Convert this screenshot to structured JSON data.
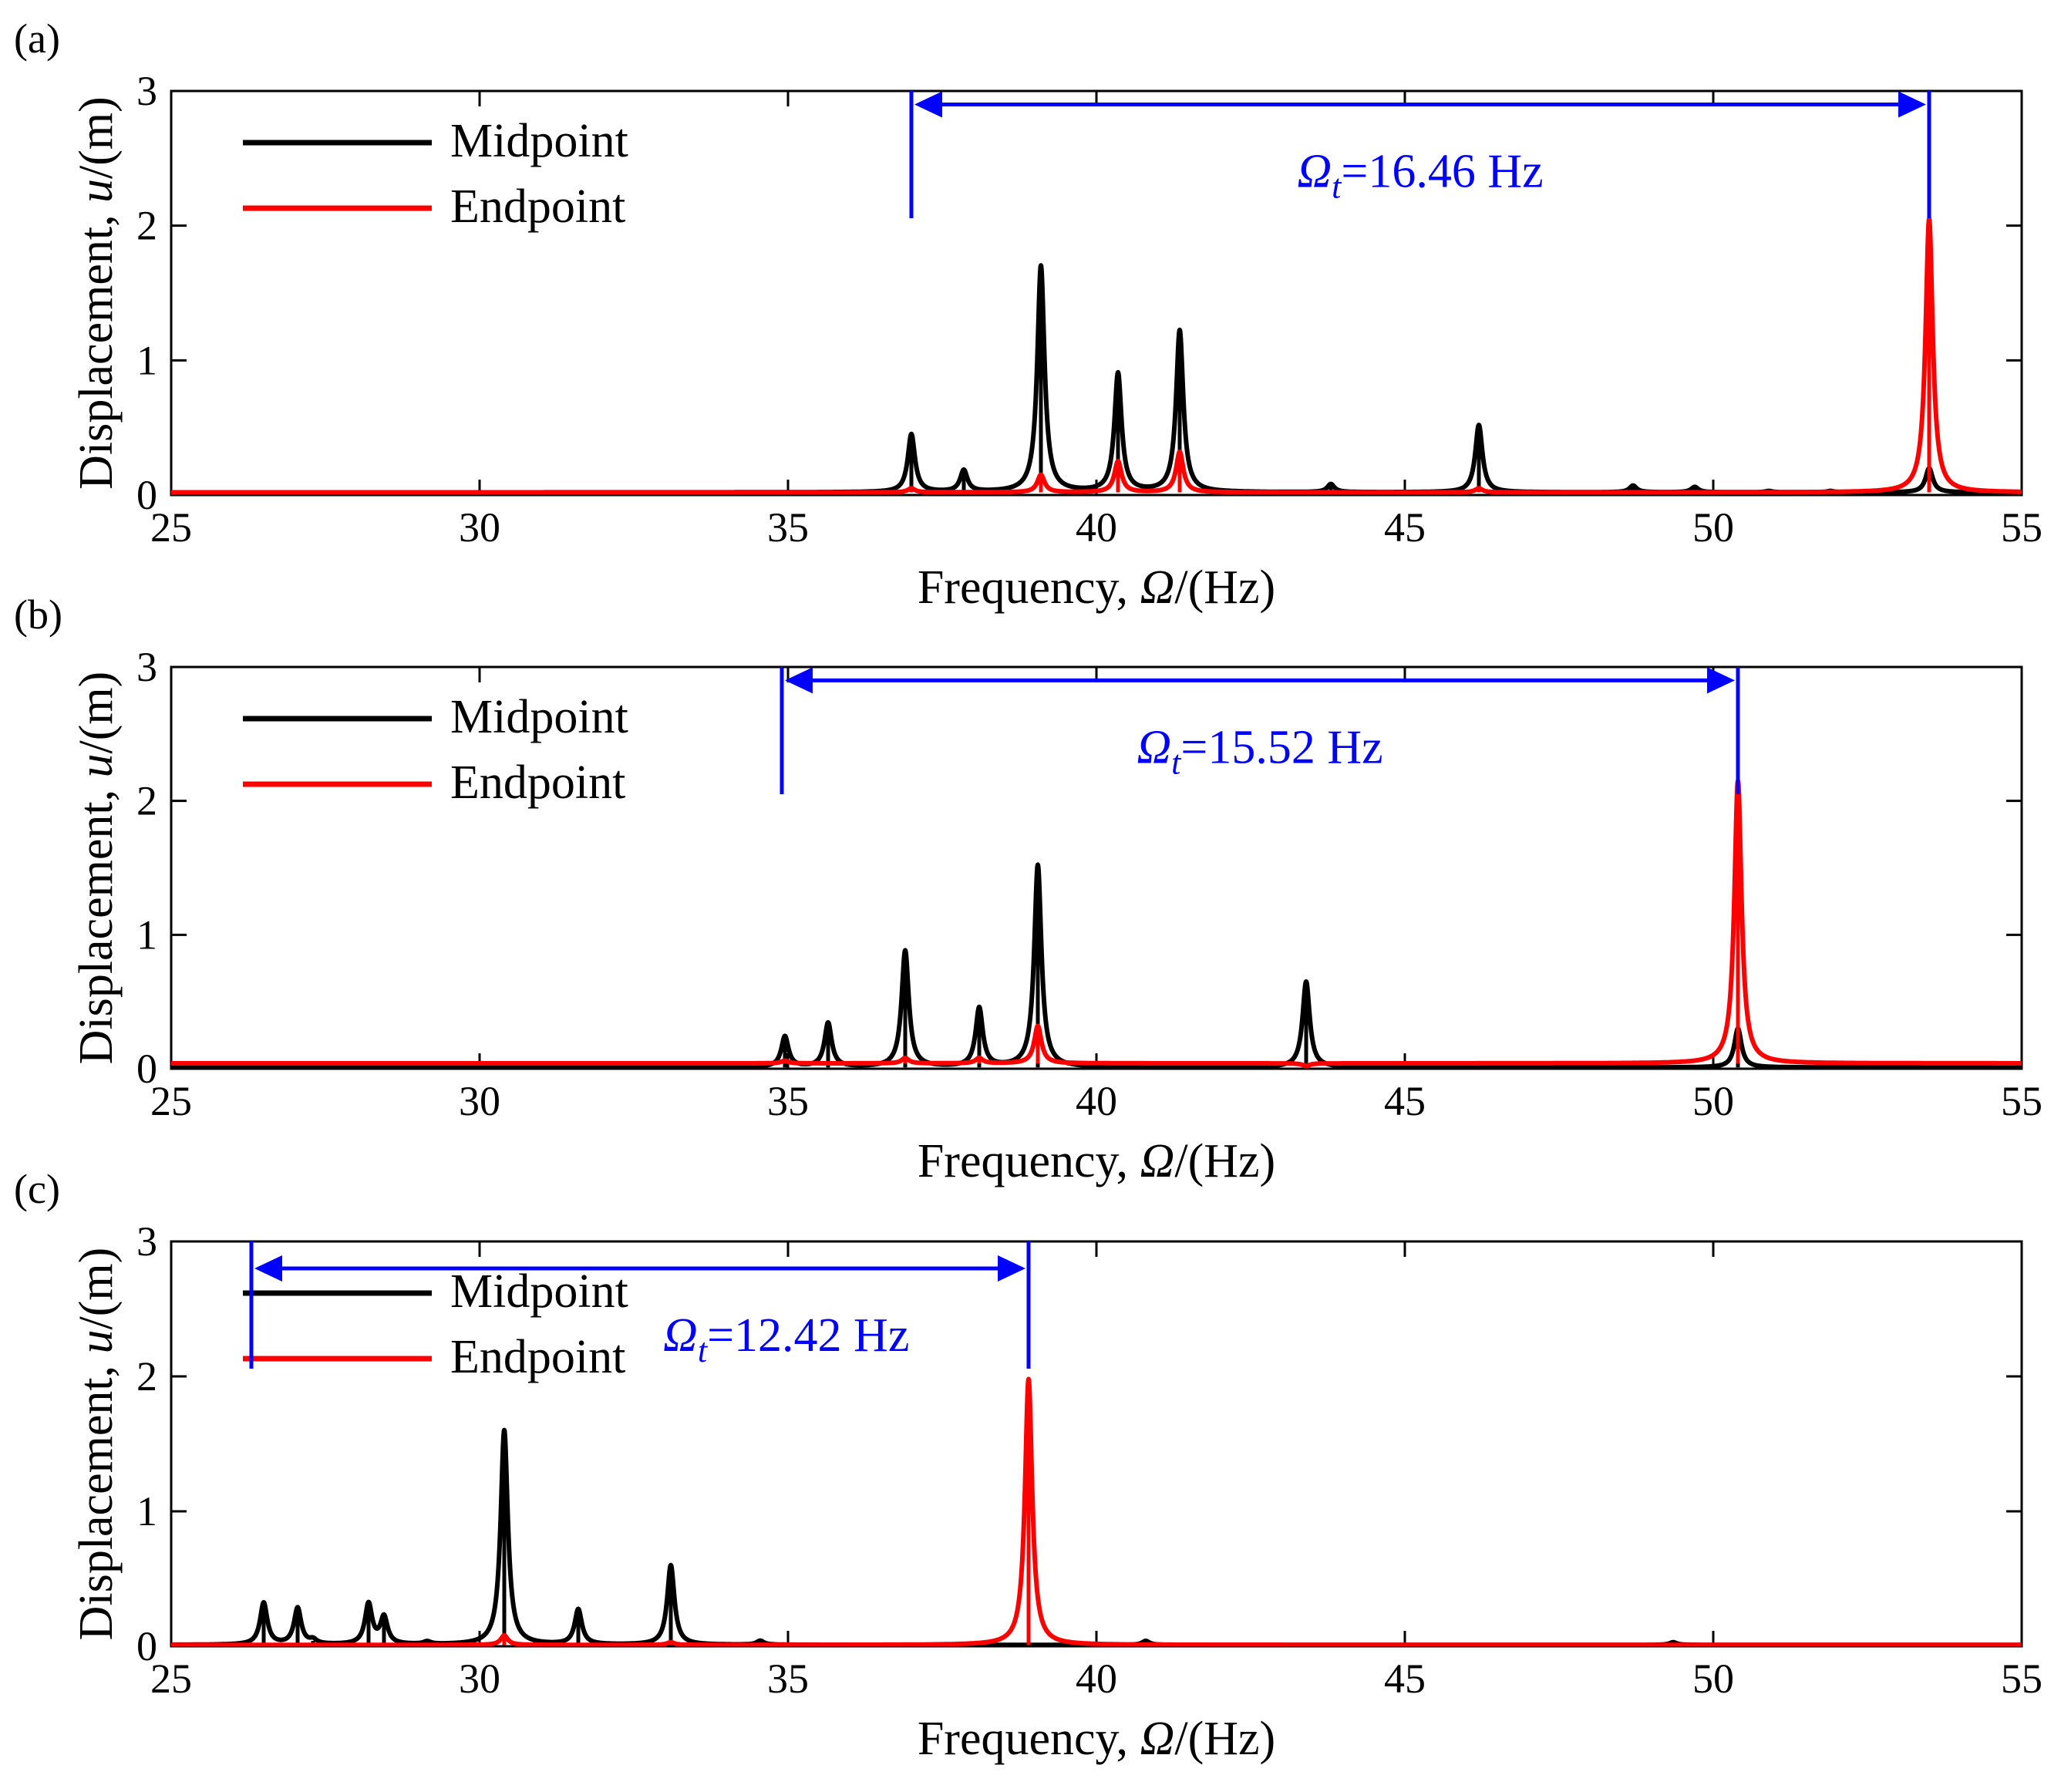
{
  "chart_data": [
    {
      "panel_label": "(a)",
      "type": "line",
      "xlabel_prefix": "Frequency, ",
      "xlabel_symbol": "Ω",
      "xlabel_suffix": "/(Hz)",
      "ylabel_prefix": "Displacement, ",
      "ylabel_symbol": "u",
      "ylabel_suffix": "/(m)",
      "xlim": [
        25,
        55
      ],
      "ylim": [
        0,
        3
      ],
      "xticks": [
        25,
        30,
        35,
        40,
        45,
        50,
        55
      ],
      "yticks": [
        0,
        1,
        2,
        3
      ],
      "baseline": {
        "Midpoint": 0.02,
        "Endpoint": 0.02
      },
      "series": [
        {
          "name": "Midpoint",
          "color": "#000000",
          "peaks": [
            [
              28.6,
              0.02
            ],
            [
              37.0,
              0.45
            ],
            [
              37.85,
              0.18
            ],
            [
              39.1,
              1.7
            ],
            [
              40.35,
              0.9
            ],
            [
              41.35,
              1.22
            ],
            [
              43.0,
              0.02
            ],
            [
              43.8,
              0.08
            ],
            [
              46.2,
              0.52
            ],
            [
              48.7,
              0.07
            ],
            [
              49.7,
              0.06
            ],
            [
              50.9,
              0.03
            ],
            [
              51.9,
              0.03
            ],
            [
              53.5,
              0.2
            ]
          ]
        },
        {
          "name": "Endpoint",
          "color": "#ff0000",
          "peaks": [
            [
              37.0,
              0.05
            ],
            [
              39.1,
              0.15
            ],
            [
              40.35,
              0.25
            ],
            [
              41.35,
              0.32
            ],
            [
              46.2,
              0.05
            ],
            [
              53.5,
              2.05
            ]
          ]
        }
      ],
      "legend": {
        "position": "top-left",
        "entries": [
          "Midpoint",
          "Endpoint"
        ]
      },
      "annotation": {
        "symbol": "Ω",
        "subscript": "t",
        "value": "=16.46 Hz",
        "x_start": 37.0,
        "x_end": 53.5,
        "arrow_y": 2.9,
        "color": "#0000ff"
      }
    },
    {
      "panel_label": "(b)",
      "type": "line",
      "xlabel_prefix": "Frequency, ",
      "xlabel_symbol": "Ω",
      "xlabel_suffix": "/(Hz)",
      "ylabel_prefix": "Displacement, ",
      "ylabel_symbol": "u",
      "ylabel_suffix": "/(m)",
      "xlim": [
        25,
        55
      ],
      "ylim": [
        0,
        3
      ],
      "xticks": [
        25,
        30,
        35,
        40,
        45,
        50,
        55
      ],
      "yticks": [
        0,
        1,
        2,
        3
      ],
      "baseline": {
        "Midpoint": 0.01,
        "Endpoint": 0.04
      },
      "series": [
        {
          "name": "Midpoint",
          "color": "#000000",
          "peaks": [
            [
              34.95,
              0.24
            ],
            [
              35.65,
              0.34
            ],
            [
              36.9,
              0.88
            ],
            [
              38.1,
              0.45
            ],
            [
              39.05,
              1.52
            ],
            [
              43.4,
              0.65
            ],
            [
              50.4,
              0.3
            ]
          ]
        },
        {
          "name": "Endpoint",
          "color": "#ff0000",
          "peaks": [
            [
              34.95,
              0.06
            ],
            [
              36.9,
              0.08
            ],
            [
              38.1,
              0.08
            ],
            [
              39.05,
              0.32
            ],
            [
              43.4,
              0.02
            ],
            [
              50.4,
              2.15
            ]
          ]
        }
      ],
      "legend": {
        "position": "top-left",
        "entries": [
          "Midpoint",
          "Endpoint"
        ]
      },
      "annotation": {
        "symbol": "Ω",
        "subscript": "t",
        "value": "=15.52 Hz",
        "x_start": 34.9,
        "x_end": 50.4,
        "arrow_y": 2.9,
        "color": "#0000ff"
      }
    },
    {
      "panel_label": "(c)",
      "type": "line",
      "xlabel_prefix": "Frequency, ",
      "xlabel_symbol": "Ω",
      "xlabel_suffix": "/(Hz)",
      "ylabel_prefix": "Displacement, ",
      "ylabel_symbol": "u",
      "ylabel_suffix": "/(m)",
      "xlim": [
        25,
        55
      ],
      "ylim": [
        0,
        3
      ],
      "xticks": [
        25,
        30,
        35,
        40,
        45,
        50,
        55
      ],
      "yticks": [
        0,
        1,
        2,
        3
      ],
      "baseline": {
        "Midpoint": 0.01,
        "Endpoint": 0.01
      },
      "series": [
        {
          "name": "Midpoint",
          "color": "#000000",
          "peaks": [
            [
              26.5,
              0.32
            ],
            [
              27.05,
              0.28
            ],
            [
              27.3,
              0.04
            ],
            [
              28.2,
              0.31
            ],
            [
              28.45,
              0.21
            ],
            [
              29.15,
              0.03
            ],
            [
              30.4,
              1.6
            ],
            [
              31.6,
              0.27
            ],
            [
              33.1,
              0.6
            ],
            [
              34.55,
              0.04
            ],
            [
              40.8,
              0.04
            ],
            [
              49.35,
              0.03
            ]
          ]
        },
        {
          "name": "Endpoint",
          "color": "#ff0000",
          "peaks": [
            [
              30.4,
              0.08
            ],
            [
              33.1,
              0.03
            ],
            [
              38.9,
              1.98
            ]
          ]
        }
      ],
      "legend": {
        "position": "top-left",
        "entries": [
          "Midpoint",
          "Endpoint"
        ]
      },
      "annotation": {
        "symbol": "Ω",
        "subscript": "t",
        "value": "=12.42 Hz",
        "x_start": 26.3,
        "x_end": 38.9,
        "arrow_y": 2.8,
        "color": "#0000ff"
      }
    }
  ]
}
